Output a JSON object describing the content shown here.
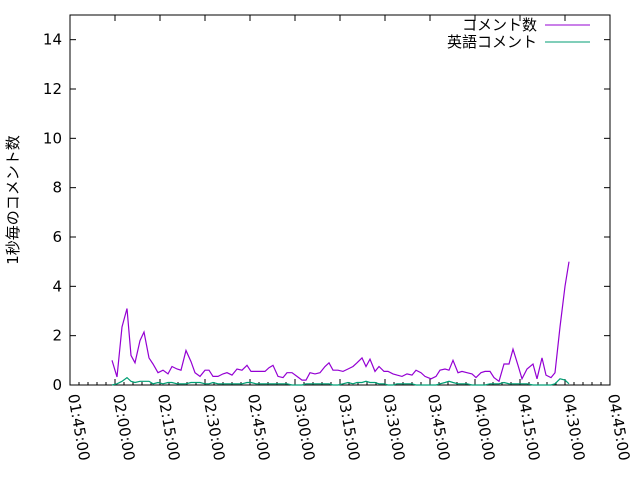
{
  "chart_data": {
    "type": "line",
    "title": "",
    "xlabel": "",
    "ylabel": "1秒毎のコメント数",
    "xlim": [
      "01:45:00",
      "04:45:00"
    ],
    "ylim": [
      0,
      15
    ],
    "xticks": [
      "01:45:00",
      "02:00:00",
      "02:15:00",
      "02:30:00",
      "02:45:00",
      "03:00:00",
      "03:15:00",
      "03:30:00",
      "03:45:00",
      "04:00:00",
      "04:15:00",
      "04:30:00",
      "04:45:00"
    ],
    "yticks": [
      "0",
      "2",
      "4",
      "6",
      "8",
      "10",
      "12",
      "14"
    ],
    "grid": false,
    "legend_position": "top-right",
    "x": [
      "01:59:00",
      "02:00:40",
      "02:02:20",
      "02:04:00",
      "02:05:20",
      "02:06:40",
      "02:08:20",
      "02:09:40",
      "02:11:20",
      "02:12:40",
      "02:14:20",
      "02:16:00",
      "02:17:40",
      "02:19:00",
      "02:20:40",
      "02:22:00",
      "02:23:40",
      "02:25:20",
      "02:26:40",
      "02:28:20",
      "02:30:00",
      "02:31:20",
      "02:32:40",
      "02:34:20",
      "02:36:00",
      "02:37:20",
      "02:39:00",
      "02:40:40",
      "02:42:20",
      "02:44:00",
      "02:45:20",
      "02:47:00",
      "02:48:20",
      "02:50:00",
      "02:51:20",
      "02:52:40",
      "02:54:20",
      "02:56:00",
      "02:57:20",
      "02:59:00",
      "03:00:40",
      "03:02:20",
      "03:03:40",
      "03:05:00",
      "03:06:40",
      "03:08:20",
      "03:10:00",
      "03:11:20",
      "03:12:40",
      "03:14:20",
      "03:16:00",
      "03:17:40",
      "03:19:20",
      "03:20:40",
      "03:22:20",
      "03:23:40",
      "03:25:00",
      "03:26:40",
      "03:28:00",
      "03:29:40",
      "03:31:00",
      "03:32:40",
      "03:34:00",
      "03:35:40",
      "03:37:20",
      "03:39:00",
      "03:40:20",
      "03:42:00",
      "03:43:20",
      "03:45:20",
      "03:47:00",
      "03:48:20",
      "03:50:00",
      "03:51:20",
      "03:52:40",
      "03:54:20",
      "03:55:40",
      "03:57:20",
      "03:59:00",
      "04:00:20",
      "04:02:00",
      "04:03:20",
      "04:05:00",
      "04:06:20",
      "04:08:00",
      "04:09:40",
      "04:11:20",
      "04:12:40",
      "04:14:20",
      "04:15:40",
      "04:17:20",
      "04:19:20",
      "04:20:40",
      "04:22:20",
      "04:23:40",
      "04:25:20",
      "04:26:40",
      "04:28:20",
      "04:30:00",
      "04:31:20"
    ],
    "series": [
      {
        "name": "コメント数",
        "color": "#9400d3",
        "values": [
          1.0,
          0.33,
          2.35,
          3.1,
          1.2,
          0.9,
          1.8,
          2.15,
          1.1,
          0.85,
          0.5,
          0.6,
          0.45,
          0.75,
          0.65,
          0.6,
          1.4,
          0.95,
          0.5,
          0.35,
          0.6,
          0.6,
          0.35,
          0.35,
          0.45,
          0.5,
          0.4,
          0.65,
          0.6,
          0.8,
          0.55,
          0.55,
          0.55,
          0.55,
          0.7,
          0.8,
          0.35,
          0.3,
          0.5,
          0.5,
          0.35,
          0.2,
          0.2,
          0.5,
          0.45,
          0.5,
          0.75,
          0.9,
          0.6,
          0.6,
          0.55,
          0.65,
          0.75,
          0.9,
          1.1,
          0.75,
          1.05,
          0.55,
          0.75,
          0.55,
          0.55,
          0.45,
          0.4,
          0.35,
          0.45,
          0.4,
          0.6,
          0.5,
          0.35,
          0.25,
          0.35,
          0.6,
          0.65,
          0.6,
          1.0,
          0.5,
          0.55,
          0.5,
          0.45,
          0.3,
          0.5,
          0.55,
          0.55,
          0.3,
          0.15,
          0.85,
          0.85,
          1.45,
          0.8,
          0.25,
          0.65,
          0.85,
          0.25,
          1.1,
          0.4,
          0.3,
          0.5,
          2.35,
          4.0,
          5.0
        ]
      },
      {
        "name": "英語コメント",
        "color": "#009e73",
        "values": [
          0,
          0.05,
          0.15,
          0.3,
          0.15,
          0.1,
          0.15,
          0.15,
          0.15,
          0.05,
          0.1,
          0.05,
          0.1,
          0.1,
          0.05,
          0.05,
          0.05,
          0.1,
          0.1,
          0.1,
          0.05,
          0.05,
          0.1,
          0.05,
          0.05,
          0.05,
          0.05,
          0.05,
          0.05,
          0.1,
          0.1,
          0.05,
          0.05,
          0.05,
          0.05,
          0.05,
          0.05,
          0.05,
          0.05,
          0,
          0,
          0,
          0.05,
          0.05,
          0.05,
          0.05,
          0.05,
          0.05,
          0,
          0,
          0.05,
          0.1,
          0.05,
          0.1,
          0.1,
          0.15,
          0.1,
          0.1,
          0.05,
          0.05,
          0,
          0,
          0.05,
          0.05,
          0.05,
          0.05,
          0,
          0,
          0,
          0,
          0,
          0.05,
          0.1,
          0.15,
          0.1,
          0.05,
          0.05,
          0.05,
          0,
          0,
          0,
          0,
          0.05,
          0.05,
          0.05,
          0.1,
          0.05,
          0.05,
          0.05,
          0.05,
          0.05,
          0,
          0,
          0,
          0,
          0,
          0.05,
          0.25,
          0.2,
          0.05
        ]
      }
    ]
  }
}
